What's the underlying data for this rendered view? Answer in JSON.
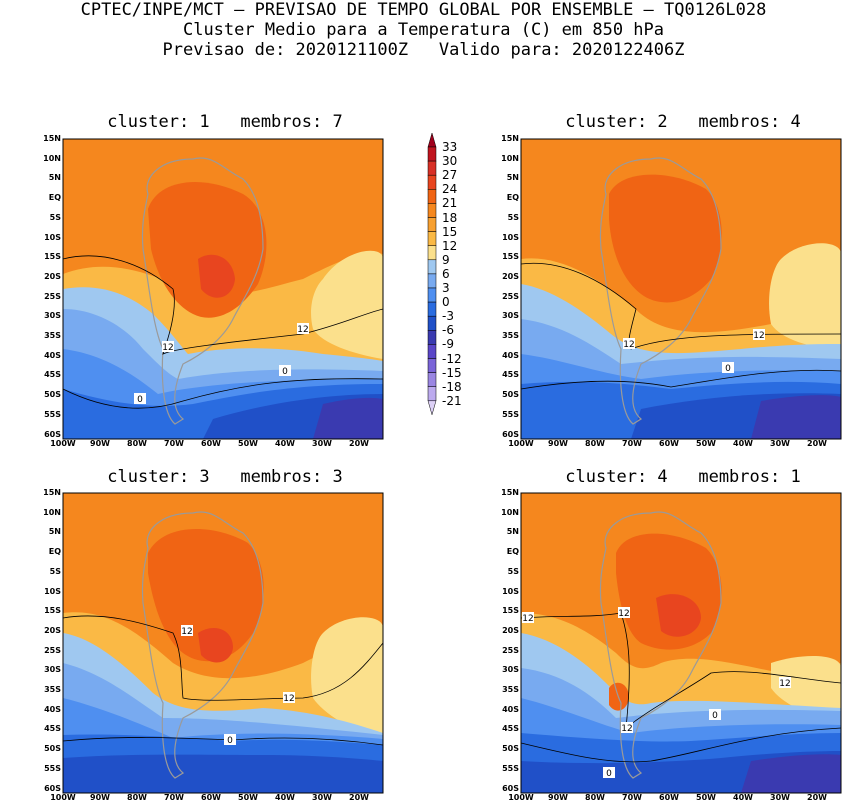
{
  "header": {
    "line1": "CPTEC/INPE/MCT – PREVISAO DE TEMPO GLOBAL POR ENSEMBLE – TQ0126L028",
    "line2": "Cluster Medio para a Temperatura (C) em 850 hPa",
    "line3": "Previsao de: 2020121100Z   Valido para: 2020122406Z"
  },
  "lat_labels": [
    "15N",
    "10N",
    "5N",
    "EQ",
    "5S",
    "10S",
    "15S",
    "20S",
    "25S",
    "30S",
    "35S",
    "40S",
    "45S",
    "50S",
    "55S",
    "60S"
  ],
  "lon_labels": [
    "100W",
    "90W",
    "80W",
    "70W",
    "60W",
    "50W",
    "40W",
    "30W",
    "20W"
  ],
  "colorbar": {
    "labels": [
      "33",
      "30",
      "27",
      "24",
      "21",
      "18",
      "15",
      "12",
      "9",
      "6",
      "3",
      "0",
      "-3",
      "-6",
      "-9",
      "-12",
      "-15",
      "-18",
      "-21"
    ],
    "colors": [
      "#a0001c",
      "#c0141e",
      "#d83026",
      "#e8451f",
      "#f06414",
      "#f5871e",
      "#f7a031",
      "#fab945",
      "#fbe08c",
      "#9fc8f0",
      "#78aaf0",
      "#4f8ff0",
      "#2a6ce0",
      "#2050c8",
      "#3a3ab0",
      "#5a46c8",
      "#7a64d8",
      "#9a86e2",
      "#bcaaee",
      "#dcd0f6"
    ]
  },
  "panels": [
    {
      "title": "cluster: 1   membros: 7",
      "contour_labels": [
        "12",
        "12",
        "0",
        "0"
      ]
    },
    {
      "title": "cluster: 2   membros: 4",
      "contour_labels": [
        "12",
        "12",
        "0"
      ]
    },
    {
      "title": "cluster: 3   membros: 3",
      "contour_labels": [
        "12",
        "12",
        "0"
      ]
    },
    {
      "title": "cluster: 4   membros: 1",
      "contour_labels": [
        "12",
        "12",
        "12",
        "12",
        "0",
        "0"
      ]
    }
  ]
}
